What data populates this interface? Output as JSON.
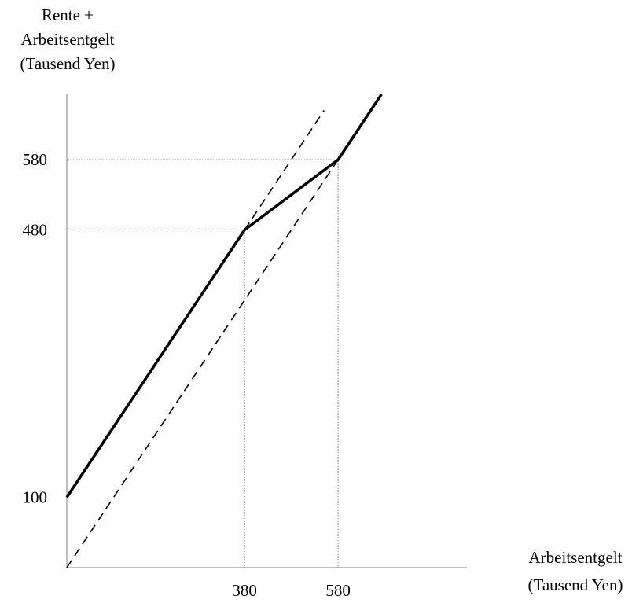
{
  "chart_data": {
    "type": "line",
    "ylabel_lines": [
      "Rente +",
      "Arbeitsentgelt",
      "(Tausend Yen)"
    ],
    "xlabel_lines": [
      "Arbeitsentgelt",
      "(Tausend Yen)"
    ],
    "xlim": [
      0,
      700
    ],
    "ylim": [
      0,
      900
    ],
    "x_ticks": [
      380,
      580
    ],
    "y_ticks": [
      100,
      480,
      580
    ],
    "grid": false,
    "colors": {
      "line": "#000000",
      "guide": "#7f7f7f"
    },
    "series": [
      {
        "style": "solid",
        "points": [
          [
            0,
            100
          ],
          [
            380,
            480
          ],
          [
            580,
            580
          ],
          [
            720,
            720
          ]
        ]
      },
      {
        "style": "dashed",
        "points": [
          [
            0,
            0
          ],
          [
            680,
            680
          ]
        ]
      },
      {
        "style": "dashed",
        "points": [
          [
            380,
            480
          ],
          [
            550,
            650
          ]
        ]
      }
    ],
    "guides": [
      {
        "axis": "y",
        "value": 580,
        "to_x": 580
      },
      {
        "axis": "y",
        "value": 480,
        "to_x": 380
      },
      {
        "axis": "x",
        "value": 380,
        "to_y": 480
      },
      {
        "axis": "x",
        "value": 580,
        "to_y": 580
      }
    ]
  }
}
